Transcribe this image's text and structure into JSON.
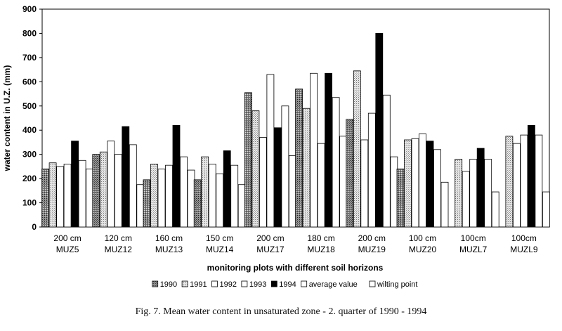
{
  "caption": "Fig. 7. Mean water content in unsaturated zone - 2. quarter of 1990 - 1994",
  "chart_data": {
    "type": "bar",
    "xlabel": "monitoring plots with different soil horizons",
    "ylabel": "water content in U.Z. (mm)",
    "ylim": [
      0,
      900
    ],
    "yticks": [
      0,
      100,
      200,
      300,
      400,
      500,
      600,
      700,
      800,
      900
    ],
    "grid": false,
    "legend_position": "bottom",
    "categories": [
      [
        "200 cm",
        "MUZ5"
      ],
      [
        "120 cm",
        "MUZ12"
      ],
      [
        "160 cm",
        "MUZ13"
      ],
      [
        "150 cm",
        "MUZ14"
      ],
      [
        "200 cm",
        "MUZ17"
      ],
      [
        "180 cm",
        "MUZ18"
      ],
      [
        "200 cm",
        "MUZ19"
      ],
      [
        "100 cm",
        "MUZ20"
      ],
      [
        "100cm",
        "MUZL7"
      ],
      [
        "100cm",
        "MUZL9"
      ]
    ],
    "series": [
      {
        "name": "1990",
        "fill": "#777777",
        "pattern": "dots-dark",
        "values": [
          240,
          300,
          195,
          195,
          555,
          570,
          445,
          240,
          null,
          null
        ]
      },
      {
        "name": "1991",
        "fill": "#cccccc",
        "pattern": "dots-light",
        "values": [
          265,
          310,
          260,
          290,
          480,
          490,
          645,
          360,
          280,
          375
        ]
      },
      {
        "name": "1992",
        "fill": "#ffffff",
        "pattern": "none",
        "values": [
          250,
          355,
          240,
          260,
          370,
          635,
          360,
          365,
          230,
          345
        ]
      },
      {
        "name": "1993",
        "fill": "#ffffff",
        "pattern": "none",
        "values": [
          260,
          300,
          255,
          220,
          630,
          345,
          470,
          385,
          280,
          380
        ]
      },
      {
        "name": "1994",
        "fill": "#000000",
        "pattern": "none",
        "values": [
          355,
          415,
          420,
          315,
          410,
          635,
          800,
          355,
          325,
          420
        ]
      },
      {
        "name": "average value",
        "fill": "#ffffff",
        "pattern": "none",
        "values": [
          275,
          340,
          290,
          255,
          500,
          535,
          545,
          320,
          280,
          380
        ]
      },
      {
        "name": "wilting point",
        "fill": "#ffffff",
        "pattern": "none",
        "values": [
          240,
          175,
          235,
          175,
          295,
          375,
          290,
          185,
          145,
          145
        ]
      }
    ]
  }
}
